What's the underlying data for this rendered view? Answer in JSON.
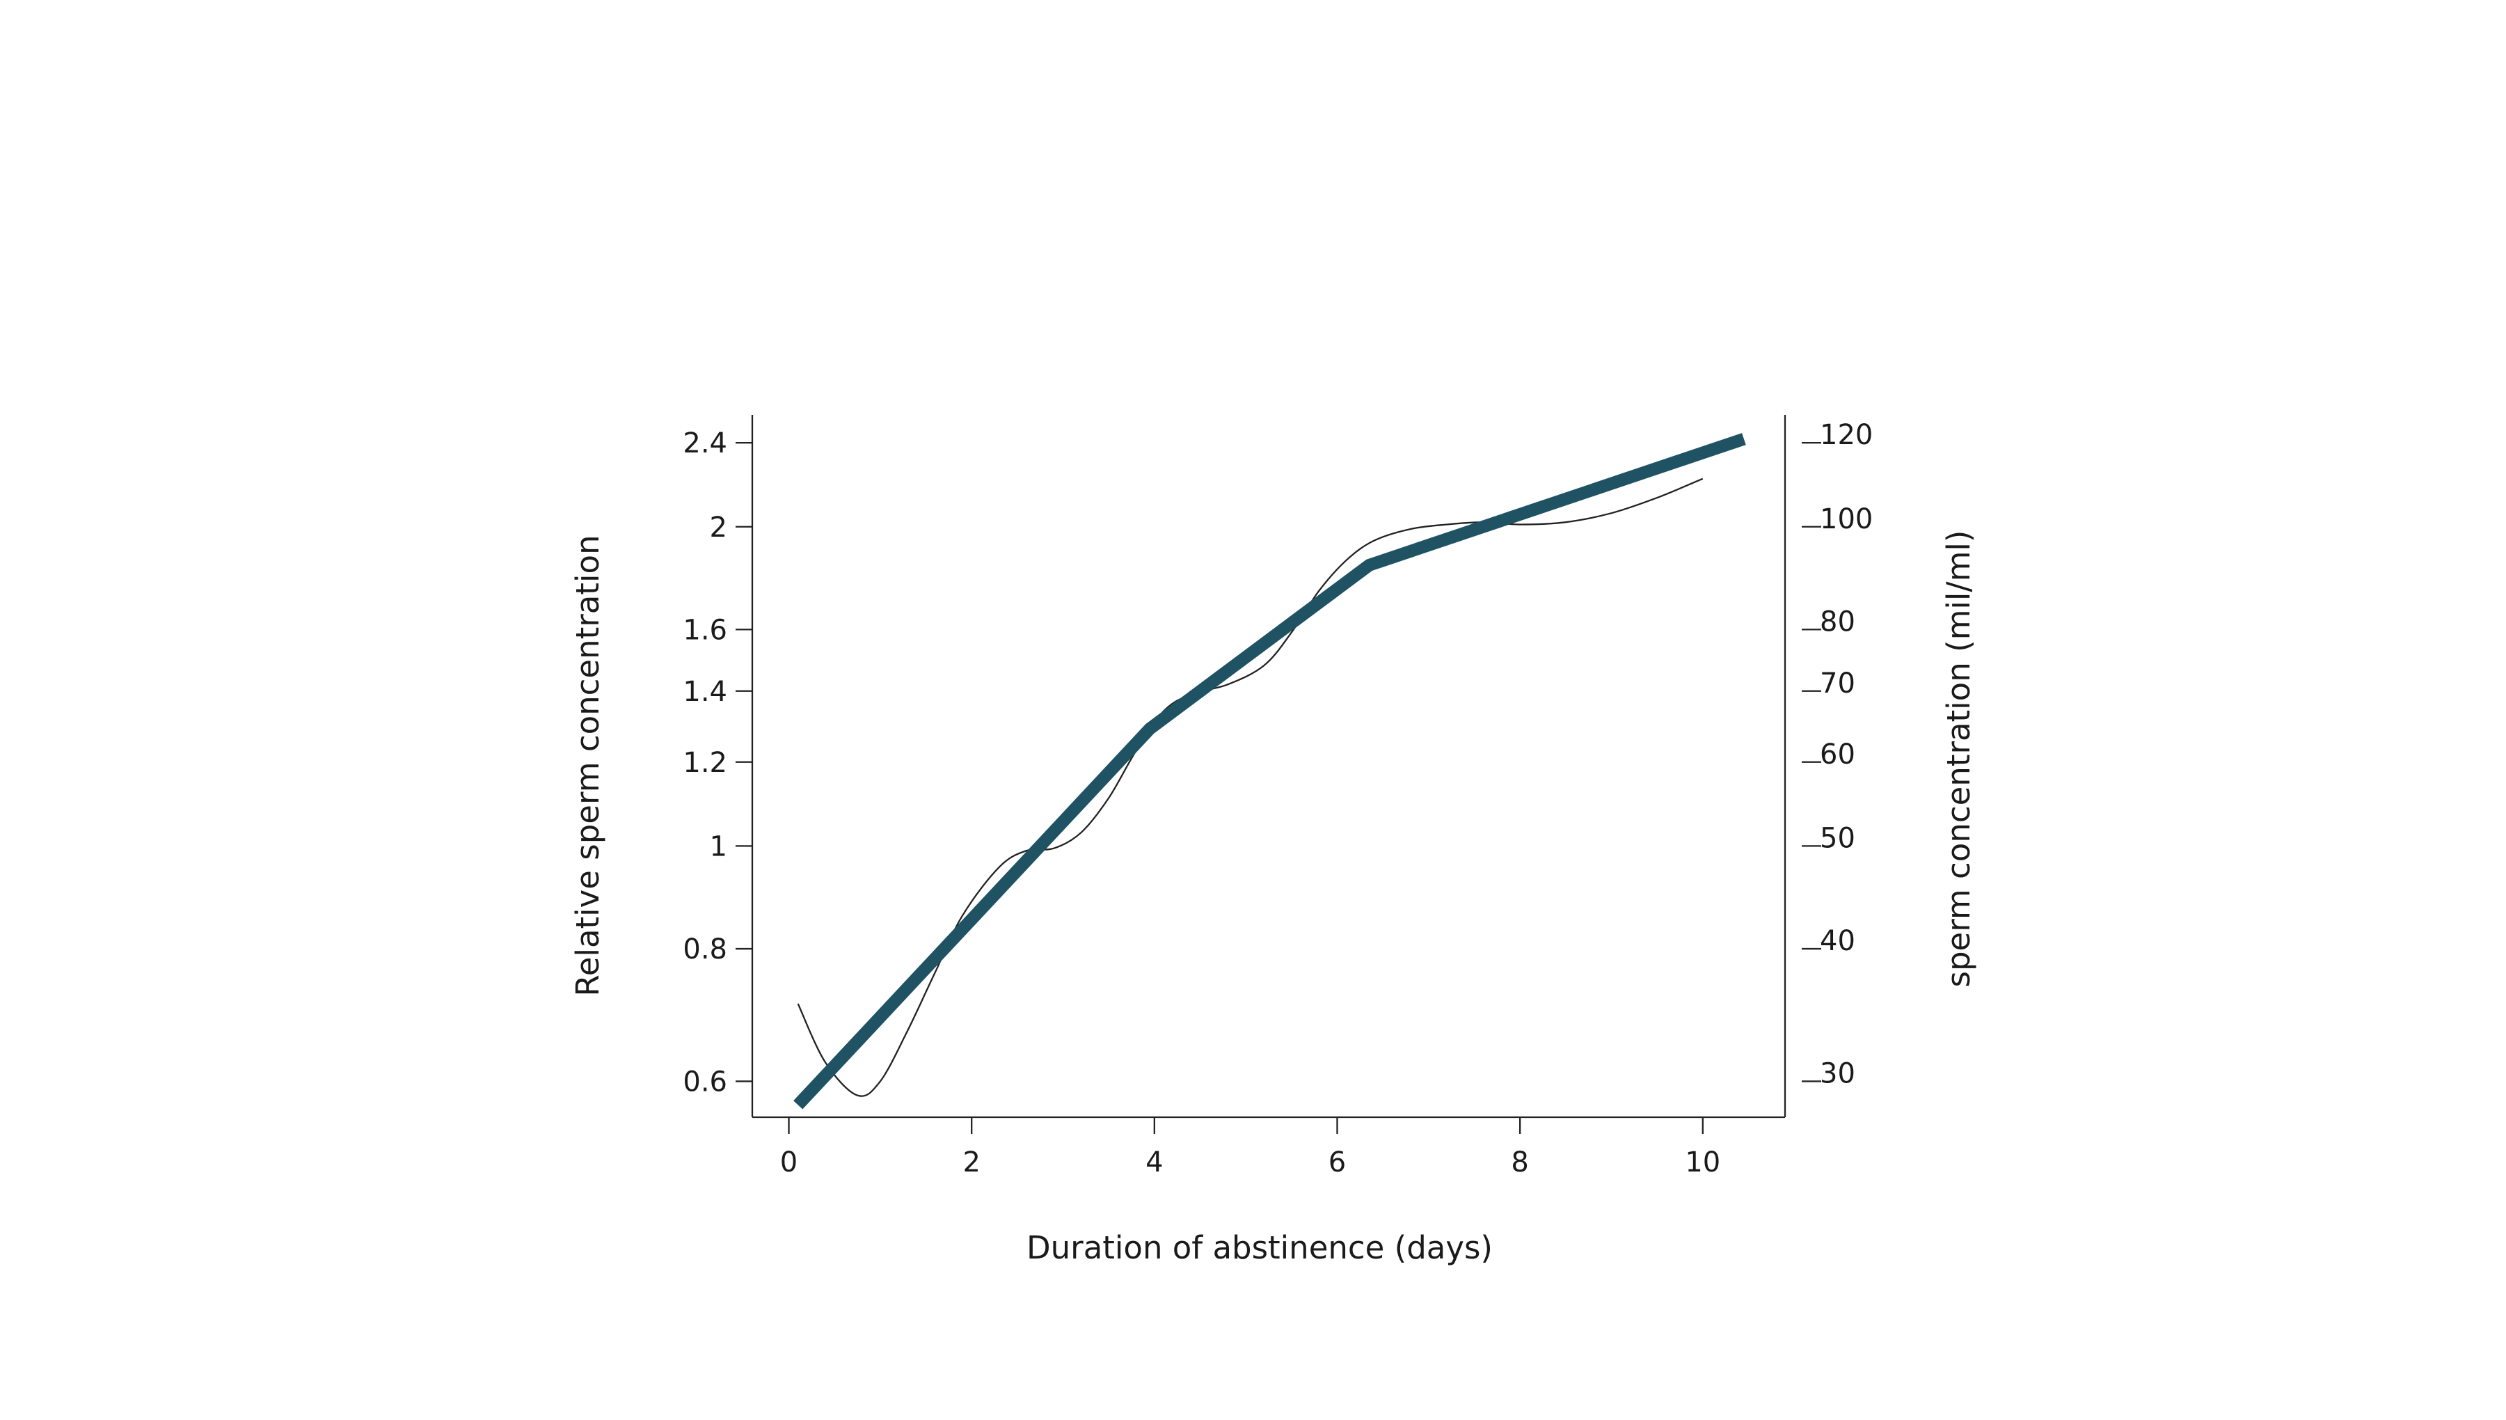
{
  "chart_data": {
    "type": "line",
    "title": "",
    "xlabel": "Duration of abstinence (days)",
    "ylabel": "Relative sperm concentration",
    "y2label": "sperm concentration (mil/ml)",
    "y_scale": "log",
    "y2_scale": "log",
    "xlim": [
      -0.4,
      10.9
    ],
    "ylim": [
      0.555,
      2.55
    ],
    "y2lim": [
      27.75,
      127.5
    ],
    "x_ticks": [
      0,
      2,
      4,
      6,
      8,
      10
    ],
    "x_tick_labels": [
      "0",
      "2",
      "4",
      "6",
      "8",
      "10"
    ],
    "y_ticks": [
      0.6,
      0.8,
      1,
      1.2,
      1.4,
      1.6,
      2,
      2.4
    ],
    "y_tick_labels": [
      "0.6",
      "0.8",
      "1",
      "1.2",
      "1.4",
      "1.6",
      "2",
      "2.4"
    ],
    "y2_ticks": [
      30,
      40,
      50,
      60,
      70,
      80,
      100,
      120
    ],
    "y2_tick_labels": [
      "30",
      "40",
      "50",
      "60",
      "70",
      "80",
      "100",
      "120"
    ],
    "grid": false,
    "legend": "none",
    "colors": {
      "trend": "#1f5263",
      "fitted": "#222222",
      "axis": "#222222",
      "text": "#1a1a1a"
    },
    "series": [
      {
        "style": "thick",
        "x": [
          0.1,
          3.95,
          6.35,
          10.45
        ],
        "y": [
          0.57,
          1.29,
          1.84,
          2.42
        ]
      },
      {
        "style": "thin",
        "x": [
          0.1,
          0.4,
          0.75,
          1.0,
          1.3,
          1.6,
          1.9,
          2.3,
          2.6,
          2.9,
          3.2,
          3.5,
          3.8,
          4.1,
          4.4,
          4.8,
          5.2,
          5.5,
          5.8,
          6.1,
          6.4,
          6.8,
          7.2,
          7.6,
          8.0,
          8.5,
          9.0,
          9.5,
          10.0
        ],
        "y": [
          0.71,
          0.625,
          0.582,
          0.6,
          0.67,
          0.76,
          0.86,
          0.955,
          0.99,
          0.995,
          1.03,
          1.11,
          1.23,
          1.34,
          1.39,
          1.42,
          1.48,
          1.59,
          1.74,
          1.86,
          1.94,
          1.99,
          2.01,
          2.02,
          2.01,
          2.02,
          2.06,
          2.13,
          2.22
        ]
      }
    ]
  }
}
